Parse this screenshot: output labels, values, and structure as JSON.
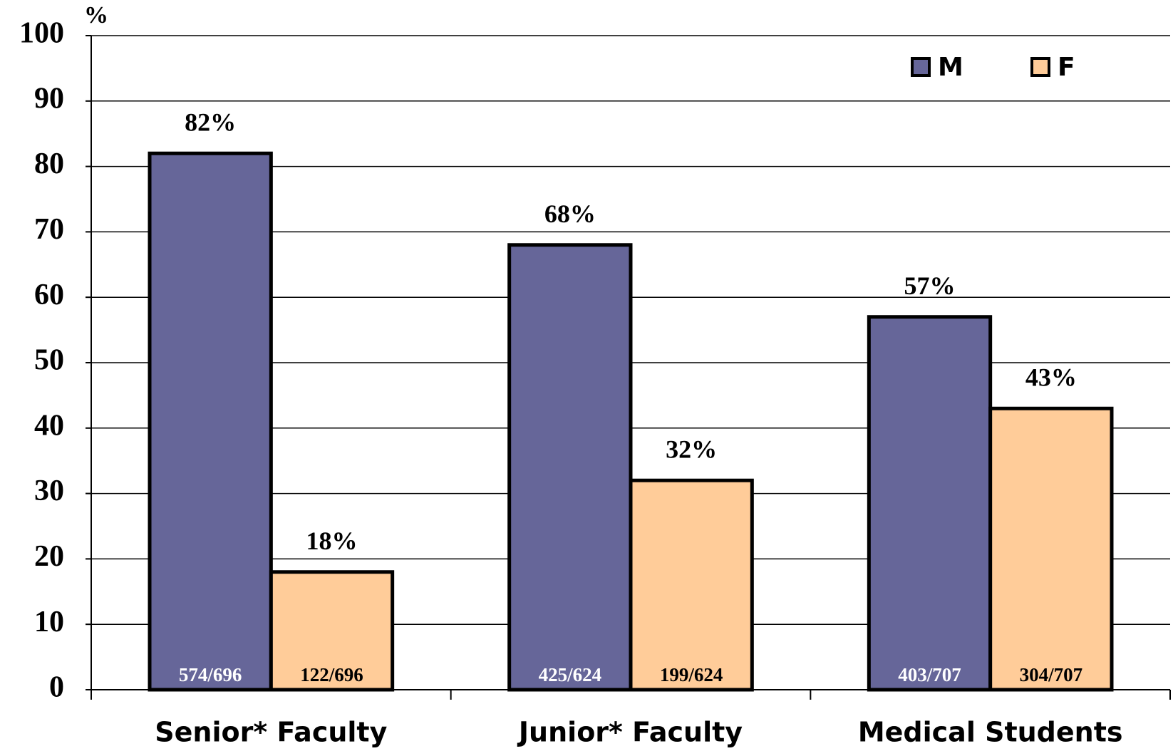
{
  "chart_data": {
    "type": "bar",
    "y_unit_label": "%",
    "categories": [
      "Senior* Faculty",
      "Junior* Faculty",
      "Medical Students"
    ],
    "series": [
      {
        "name": "M",
        "color": "#666699",
        "values": [
          82,
          68,
          57
        ],
        "value_labels": [
          "82%",
          "68%",
          "57%"
        ],
        "inner_labels": [
          "574/696",
          "425/624",
          "403/707"
        ],
        "inner_label_color": "#ffffff"
      },
      {
        "name": "F",
        "color": "#ffcc99",
        "values": [
          18,
          32,
          43
        ],
        "value_labels": [
          "18%",
          "32%",
          "43%"
        ],
        "inner_labels": [
          "122/696",
          "199/624",
          "304/707"
        ],
        "inner_label_color": "#000000"
      }
    ],
    "ylim": [
      0,
      100
    ],
    "yticks": [
      0,
      10,
      20,
      30,
      40,
      50,
      60,
      70,
      80,
      90,
      100
    ],
    "grid": true,
    "legend": "upper right"
  }
}
